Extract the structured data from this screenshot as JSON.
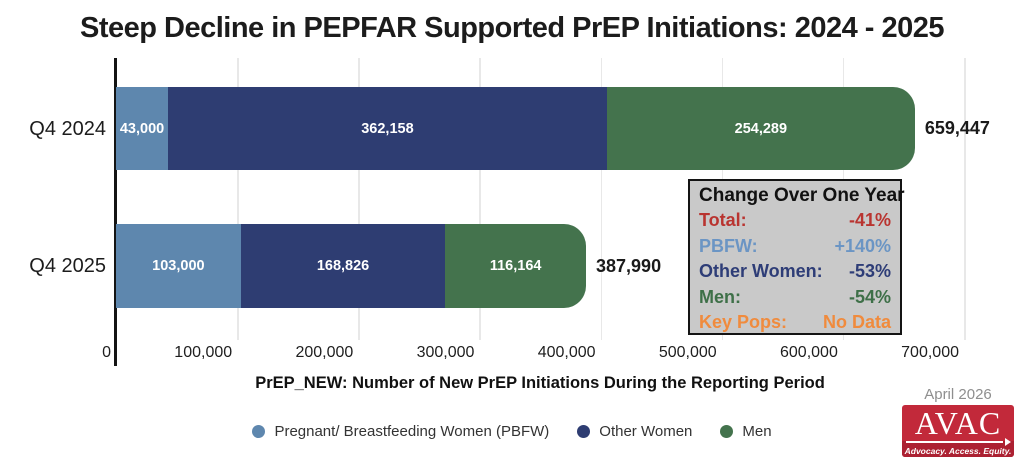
{
  "title": "Steep Decline in PEPFAR Supported PrEP Initiations: 2024 - 2025",
  "chart_data": {
    "type": "bar",
    "orientation": "horizontal",
    "stacked": true,
    "categories": [
      "Q4 2024",
      "Q4 2025"
    ],
    "series": [
      {
        "name": "Pregnant/ Breastfeeding Women (PBFW)",
        "color": "#5E87AE",
        "values": [
          43000,
          103000
        ],
        "value_labels": [
          "43,000",
          "103,000"
        ]
      },
      {
        "name": "Other Women",
        "color": "#2E3D72",
        "values": [
          362158,
          168826
        ],
        "value_labels": [
          "362,158",
          "168,826"
        ]
      },
      {
        "name": "Men",
        "color": "#44734D",
        "values": [
          254289,
          116164
        ],
        "value_labels": [
          "254,289",
          "116,164"
        ]
      }
    ],
    "totals": [
      659447,
      387990
    ],
    "total_labels": [
      "659,447",
      "387,990"
    ],
    "xlabel": "PrEP_NEW: Number of New PrEP Initiations During the Reporting Period",
    "xlim": [
      0,
      700000
    ],
    "xticks": [
      "0",
      "100,000",
      "200,000",
      "300,000",
      "400,000",
      "500,000",
      "600,000",
      "700,000"
    ],
    "grid": true,
    "legend_position": "bottom"
  },
  "change_box": {
    "title": "Change Over One Year",
    "rows": [
      {
        "label": "Total:",
        "value": "-41%",
        "color": "#B93430"
      },
      {
        "label": "PBFW:",
        "value": "+140%",
        "color": "#6B95C4"
      },
      {
        "label": "Other Women:",
        "value": "-53%",
        "color": "#2E3D77"
      },
      {
        "label": "Men:",
        "value": "-54%",
        "color": "#3E7048"
      },
      {
        "label": "Key Pops:",
        "value": "No Data",
        "color": "#F08B3D"
      }
    ]
  },
  "footer": {
    "date": "April 2026",
    "logo": {
      "text": "AVAC",
      "tagline": "Advocacy. Access. Equity.",
      "bg_color": "#C2293A",
      "strip_color": "#AC2132"
    }
  }
}
